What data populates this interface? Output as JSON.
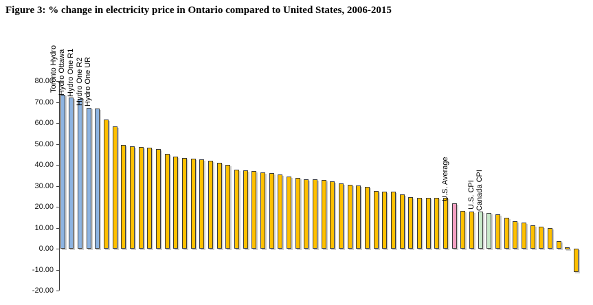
{
  "title": "Figure 3: % change in electricity price in Ontario compared to United States, 2006-2015",
  "colors": {
    "blue": "#8DB4E2",
    "gold": "#FFC000",
    "pink": "#F4A0C2",
    "green": "#C9EACB",
    "bar_border": "#3a3a3a",
    "axis": "#3a3a3a"
  },
  "chart_data": {
    "type": "bar",
    "title": "Figure 3: % change in electricity price in Ontario compared to United States, 2006-2015",
    "xlabel": "",
    "ylabel": "",
    "ylim": [
      -20,
      80
    ],
    "ytick_step": 10,
    "ytick_labels": [
      "80.00",
      "70.00",
      "60.00",
      "50.00",
      "40.00",
      "30.00",
      "20.00",
      "10.00",
      "0.00",
      "-10.00",
      "-20.00"
    ],
    "grid": false,
    "legend": false,
    "bars": [
      {
        "v": 73.3,
        "c": "blue",
        "label": "Toronto Hydro"
      },
      {
        "v": 72.2,
        "c": "blue",
        "label": "Hydro Ottawa"
      },
      {
        "v": 71.5,
        "c": "blue",
        "label": "Hydro One R1"
      },
      {
        "v": 67.3,
        "c": "blue",
        "label": "Hydro One R2"
      },
      {
        "v": 66.8,
        "c": "blue",
        "label": "Hydro One UR"
      },
      {
        "v": 61.7,
        "c": "gold"
      },
      {
        "v": 58.5,
        "c": "gold"
      },
      {
        "v": 49.4,
        "c": "gold"
      },
      {
        "v": 49.0,
        "c": "gold"
      },
      {
        "v": 48.6,
        "c": "gold"
      },
      {
        "v": 48.2,
        "c": "gold"
      },
      {
        "v": 47.6,
        "c": "gold"
      },
      {
        "v": 45.2,
        "c": "gold"
      },
      {
        "v": 43.9,
        "c": "gold"
      },
      {
        "v": 43.4,
        "c": "gold"
      },
      {
        "v": 43.1,
        "c": "gold"
      },
      {
        "v": 42.5,
        "c": "gold"
      },
      {
        "v": 42.0,
        "c": "gold"
      },
      {
        "v": 40.9,
        "c": "gold"
      },
      {
        "v": 39.9,
        "c": "gold"
      },
      {
        "v": 37.8,
        "c": "gold"
      },
      {
        "v": 37.5,
        "c": "gold"
      },
      {
        "v": 37.2,
        "c": "gold"
      },
      {
        "v": 36.4,
        "c": "gold"
      },
      {
        "v": 36.1,
        "c": "gold"
      },
      {
        "v": 35.3,
        "c": "gold"
      },
      {
        "v": 34.5,
        "c": "gold"
      },
      {
        "v": 33.9,
        "c": "gold"
      },
      {
        "v": 33.2,
        "c": "gold"
      },
      {
        "v": 33.1,
        "c": "gold"
      },
      {
        "v": 32.8,
        "c": "gold"
      },
      {
        "v": 32.2,
        "c": "gold"
      },
      {
        "v": 31.2,
        "c": "gold"
      },
      {
        "v": 30.6,
        "c": "gold"
      },
      {
        "v": 30.1,
        "c": "gold"
      },
      {
        "v": 29.5,
        "c": "gold"
      },
      {
        "v": 27.7,
        "c": "gold"
      },
      {
        "v": 27.2,
        "c": "gold"
      },
      {
        "v": 27.1,
        "c": "gold"
      },
      {
        "v": 25.8,
        "c": "gold"
      },
      {
        "v": 24.6,
        "c": "gold"
      },
      {
        "v": 24.3,
        "c": "gold"
      },
      {
        "v": 24.2,
        "c": "gold"
      },
      {
        "v": 24.2,
        "c": "gold"
      },
      {
        "v": 24.2,
        "c": "gold"
      },
      {
        "v": 21.5,
        "c": "pink",
        "label": "U.S. Average"
      },
      {
        "v": 18.1,
        "c": "gold"
      },
      {
        "v": 17.8,
        "c": "gold"
      },
      {
        "v": 17.7,
        "c": "green",
        "label": "U.S. CPI"
      },
      {
        "v": 17.0,
        "c": "green",
        "label": "Canada CPI"
      },
      {
        "v": 16.5,
        "c": "gold"
      },
      {
        "v": 14.8,
        "c": "gold"
      },
      {
        "v": 13.2,
        "c": "gold"
      },
      {
        "v": 12.5,
        "c": "gold"
      },
      {
        "v": 11.0,
        "c": "gold"
      },
      {
        "v": 10.6,
        "c": "gold"
      },
      {
        "v": 9.7,
        "c": "gold"
      },
      {
        "v": 3.5,
        "c": "gold"
      },
      {
        "v": 0.7,
        "c": "gold"
      },
      {
        "v": -11.2,
        "c": "gold"
      }
    ]
  }
}
